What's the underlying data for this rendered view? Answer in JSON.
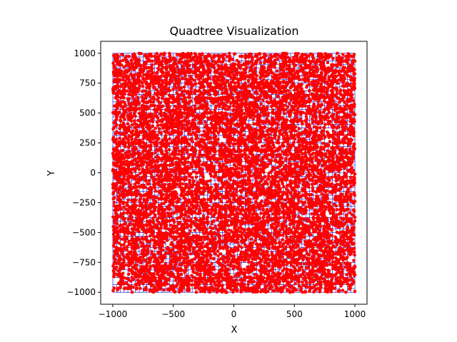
{
  "chart_data": {
    "type": "scatter",
    "title": "Quadtree Visualization",
    "xlabel": "X",
    "ylabel": "Y",
    "xlim": [
      -1100,
      1100
    ],
    "ylim": [
      -1100,
      1100
    ],
    "x_ticks": [
      -1000,
      -500,
      0,
      500,
      1000
    ],
    "x_tick_labels": [
      "−1000",
      "−500",
      "0",
      "500",
      "1000"
    ],
    "y_ticks": [
      -1000,
      -750,
      -500,
      -250,
      0,
      250,
      500,
      750,
      1000
    ],
    "y_tick_labels": [
      "−1000",
      "−750",
      "−500",
      "−250",
      "0",
      "250",
      "500",
      "750",
      "1000"
    ],
    "grid": false,
    "aspect": "equal",
    "points": {
      "description_free": true,
      "count_approx": 10000,
      "x_range": [
        -1000,
        1000
      ],
      "y_range": [
        -1000,
        1000
      ],
      "distribution": "uniform",
      "color": "#ff0000"
    },
    "quadtree": {
      "boundary": [
        -1000,
        -1000,
        1000,
        1000
      ],
      "line_color": "#0000cc"
    }
  }
}
